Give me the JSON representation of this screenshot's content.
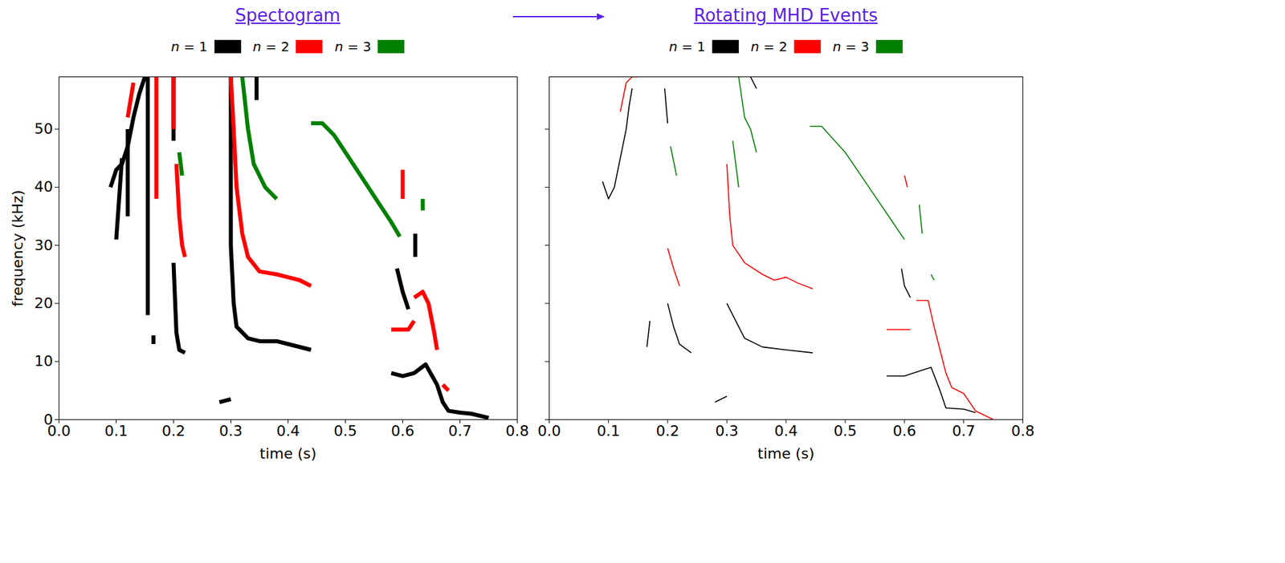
{
  "chart_data": [
    {
      "type": "line",
      "title": "Spectogram",
      "y_label": "frequency (kHz)",
      "x_label": "time (s)",
      "xlim": [
        0,
        0.8
      ],
      "ylim": [
        0,
        59
      ],
      "xticks": [
        {
          "value": 0,
          "label": "0.0"
        },
        0.1,
        0.2,
        0.3,
        0.4,
        0.5,
        0.6,
        0.7,
        0.8
      ],
      "yticks": [
        0,
        10,
        20,
        30,
        40,
        50
      ],
      "legend": "top",
      "series": [
        {
          "name": "n = 1",
          "color": "#000000",
          "x": [
            0.09,
            0.1,
            0.11,
            0.12,
            0.13,
            0.14,
            0.15,
            null,
            0.1,
            0.105,
            0.11,
            null,
            0.12,
            0.12,
            null,
            0.155,
            0.155,
            null,
            0.165,
            0.165,
            null,
            0.2,
            0.2,
            null,
            0.2,
            0.205,
            0.21,
            0.22,
            null,
            0.3,
            0.3,
            0.305,
            0.31,
            0.33,
            0.35,
            0.38,
            0.4,
            0.44,
            null,
            0.345,
            0.345,
            null,
            0.28,
            0.3,
            null,
            0.59,
            0.6,
            0.61,
            null,
            0.58,
            0.6,
            0.62,
            0.64,
            0.66,
            0.67,
            0.68,
            0.7,
            0.72,
            0.75,
            null,
            0.622,
            0.622
          ],
          "values": [
            40,
            43,
            44,
            47,
            52,
            56,
            59,
            null,
            31,
            38,
            45,
            null,
            35,
            50,
            null,
            59,
            18,
            null,
            13,
            14.5,
            null,
            59,
            48,
            null,
            27,
            15,
            12,
            11.5,
            null,
            59,
            30,
            20,
            16,
            14,
            13.5,
            13.5,
            13,
            12,
            null,
            59,
            55,
            null,
            3,
            3.5,
            null,
            26,
            22,
            19,
            null,
            8,
            7.5,
            8,
            9.5,
            6,
            3,
            1.5,
            1.2,
            1,
            0.3,
            null,
            32,
            28
          ]
        },
        {
          "name": "n = 2",
          "color": "#ff0000",
          "x": [
            0.12,
            0.13,
            null,
            0.17,
            0.17,
            null,
            0.2,
            0.2,
            null,
            0.205,
            0.21,
            0.215,
            0.22,
            null,
            0.3,
            0.305,
            0.31,
            0.32,
            0.33,
            0.35,
            0.38,
            0.4,
            0.42,
            0.44,
            null,
            0.6,
            0.6,
            null,
            0.58,
            0.61,
            0.62,
            null,
            0.62,
            0.635,
            0.645,
            0.655,
            0.66,
            null,
            0.67,
            0.68
          ],
          "values": [
            52,
            58,
            null,
            59,
            38,
            null,
            59,
            50,
            null,
            44,
            35,
            30,
            28,
            null,
            59,
            50,
            40,
            32,
            28,
            25.5,
            25,
            24.5,
            24,
            23,
            null,
            43,
            38,
            null,
            15.5,
            15.5,
            17,
            null,
            21,
            22,
            20,
            15,
            12,
            null,
            6,
            5
          ]
        },
        {
          "name": "n = 3",
          "color": "#008000",
          "x": [
            0.21,
            0.215,
            null,
            0.32,
            0.33,
            0.34,
            0.36,
            0.38,
            null,
            0.44,
            0.46,
            0.48,
            0.5,
            0.52,
            0.54,
            0.56,
            0.58,
            0.595,
            null,
            0.635,
            0.635
          ],
          "values": [
            46,
            42,
            null,
            59,
            50,
            44,
            40,
            38,
            null,
            51,
            51,
            49,
            46,
            43,
            40,
            37,
            34,
            31.5,
            null,
            38,
            36
          ]
        }
      ]
    },
    {
      "type": "line",
      "title": "Rotating MHD Events",
      "x_label": "time (s)",
      "xlim": [
        0,
        0.8
      ],
      "ylim": [
        0,
        59
      ],
      "xticks": [
        {
          "value": 0,
          "label": "0.0"
        },
        0.1,
        0.2,
        0.3,
        0.4,
        0.5,
        0.6,
        0.7,
        0.8
      ],
      "yticks": [
        0,
        10,
        20,
        30,
        40,
        50
      ],
      "tick_labels": "x",
      "legend": "top",
      "series": [
        {
          "name": "n = 1",
          "color": "#000000",
          "x": [
            0.09,
            0.1,
            0.11,
            0.12,
            0.13,
            0.135,
            0.14,
            null,
            0.195,
            0.2,
            null,
            0.165,
            0.17,
            null,
            0.2,
            0.21,
            0.22,
            0.24,
            null,
            0.3,
            0.31,
            0.33,
            0.36,
            0.4,
            0.445,
            null,
            0.28,
            0.3,
            null,
            0.34,
            0.35,
            null,
            0.595,
            0.6,
            0.61,
            null,
            0.57,
            0.6,
            0.63,
            0.645,
            0.66,
            0.67,
            0.7,
            0.72
          ],
          "values": [
            41,
            38,
            40,
            45,
            50,
            54,
            57,
            null,
            57,
            51,
            null,
            12.5,
            17,
            null,
            20,
            16,
            13,
            11.5,
            null,
            20,
            18,
            14,
            12.5,
            12,
            11.5,
            null,
            3,
            4,
            null,
            59,
            57,
            null,
            26,
            23,
            21,
            null,
            7.5,
            7.5,
            8.5,
            9,
            5,
            2,
            1.8,
            1.2
          ]
        },
        {
          "name": "n = 2",
          "color": "#ff0000",
          "x": [
            0.12,
            0.13,
            0.14,
            0.15,
            null,
            0.2,
            0.21,
            0.22,
            null,
            0.3,
            0.305,
            0.31,
            0.33,
            0.36,
            0.38,
            0.4,
            0.42,
            0.445,
            null,
            0.6,
            0.605,
            null,
            0.57,
            0.61,
            null,
            0.62,
            0.64,
            0.65,
            0.66,
            0.67,
            0.68,
            0.7,
            0.72,
            0.75
          ],
          "values": [
            53,
            58,
            59,
            59,
            null,
            29.5,
            26,
            23,
            null,
            44,
            35,
            30,
            27,
            25,
            24,
            24.5,
            23.5,
            22.5,
            null,
            42,
            40,
            null,
            15.5,
            15.5,
            null,
            20.5,
            20.5,
            16,
            12,
            8,
            5.5,
            4.5,
            1.5,
            0
          ]
        },
        {
          "name": "n = 3",
          "color": "#008000",
          "x": [
            0.205,
            0.215,
            null,
            0.31,
            0.32,
            null,
            0.32,
            0.33,
            0.34,
            0.35,
            null,
            0.44,
            0.46,
            0.5,
            0.54,
            0.58,
            0.6,
            null,
            0.625,
            0.63,
            null,
            0.645,
            0.65
          ],
          "values": [
            47,
            42,
            null,
            48,
            40,
            null,
            59,
            52,
            50,
            46,
            null,
            50.5,
            50.5,
            46,
            40,
            34,
            31,
            null,
            37,
            32,
            null,
            25,
            24
          ]
        }
      ]
    }
  ]
}
